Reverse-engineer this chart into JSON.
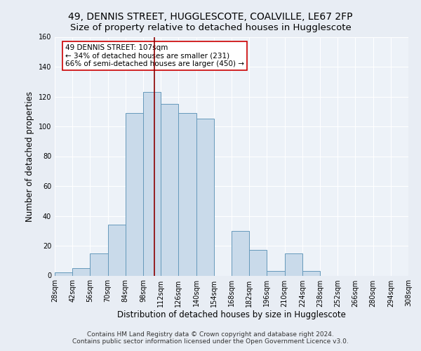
{
  "title": "49, DENNIS STREET, HUGGLESCOTE, COALVILLE, LE67 2FP",
  "subtitle": "Size of property relative to detached houses in Hugglescote",
  "xlabel": "Distribution of detached houses by size in Hugglescote",
  "ylabel": "Number of detached properties",
  "footer_line1": "Contains HM Land Registry data © Crown copyright and database right 2024.",
  "footer_line2": "Contains public sector information licensed under the Open Government Licence v3.0.",
  "annotation_line1": "49 DENNIS STREET: 107sqm",
  "annotation_line2": "← 34% of detached houses are smaller (231)",
  "annotation_line3": "66% of semi-detached houses are larger (450) →",
  "bar_color": "#c9daea",
  "bar_edge_color": "#6699bb",
  "vline_color": "#8b0000",
  "vline_x": 107,
  "bin_edges": [
    28,
    42,
    56,
    70,
    84,
    98,
    112,
    126,
    140,
    154,
    168,
    182,
    196,
    210,
    224,
    238,
    252,
    266,
    280,
    294,
    308
  ],
  "bin_counts": [
    2,
    5,
    15,
    34,
    109,
    123,
    115,
    109,
    105,
    0,
    30,
    17,
    3,
    15,
    3,
    0,
    0,
    0,
    0,
    0
  ],
  "ylim": [
    0,
    160
  ],
  "yticks": [
    0,
    20,
    40,
    60,
    80,
    100,
    120,
    140,
    160
  ],
  "background_color": "#e8edf4",
  "plot_background_color": "#edf2f8",
  "grid_color": "#ffffff",
  "title_fontsize": 10,
  "subtitle_fontsize": 9.5,
  "axis_label_fontsize": 8.5,
  "tick_fontsize": 7,
  "footer_fontsize": 6.5,
  "annotation_fontsize": 7.5
}
